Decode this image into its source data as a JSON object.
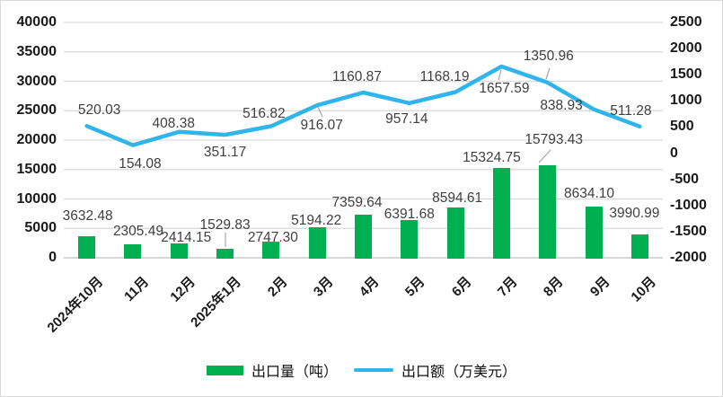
{
  "chart_data": {
    "type": "bar",
    "categories": [
      "2024年10月",
      "11月",
      "12月",
      "2025年1月",
      "2月",
      "3月",
      "4月",
      "5月",
      "6月",
      "7月",
      "8月",
      "9月",
      "10月"
    ],
    "series": [
      {
        "name": "出口量（吨）",
        "type": "bar",
        "axis": "left",
        "color": "#00B050",
        "values": [
          3632.48,
          2305.49,
          2414.15,
          1529.83,
          2747.3,
          5194.22,
          7359.64,
          6391.68,
          8594.61,
          15324.75,
          15793.43,
          8634.1,
          3990.99
        ]
      },
      {
        "name": "出口额（万美元）",
        "type": "line",
        "axis": "right",
        "color": "#2FB4EC",
        "values": [
          520.03,
          154.08,
          408.38,
          351.17,
          516.82,
          916.07,
          1160.87,
          957.14,
          1168.19,
          1657.59,
          1350.96,
          838.93,
          511.28
        ]
      }
    ],
    "title": "",
    "xlabel": "",
    "ylabel": "",
    "left_axis": {
      "min": 0,
      "max": 40000,
      "step": 5000,
      "ticks": [
        "40000",
        "35000",
        "30000",
        "25000",
        "20000",
        "15000",
        "10000",
        "5000",
        "0"
      ]
    },
    "right_axis": {
      "min": -2000,
      "max": 2500,
      "step": 500,
      "ticks": [
        "2500",
        "2000",
        "1500",
        "1000",
        "500",
        "0",
        "-500",
        "-1000",
        "-1500",
        "-2000"
      ]
    },
    "grid": true,
    "data_labels": true,
    "legend_position": "bottom"
  },
  "legend": {
    "items": [
      {
        "label": "出口量（吨）",
        "swatch": "bar-swatch",
        "color": "#00B050"
      },
      {
        "label": "出口额（万美元）",
        "swatch": "line-swatch",
        "color": "#2FB4EC"
      }
    ]
  },
  "colors": {
    "gridline": "#d9d9d9",
    "axis_line": "#bfbfbf",
    "leader_line": "#a6a6a6",
    "background": "#ffffff"
  }
}
